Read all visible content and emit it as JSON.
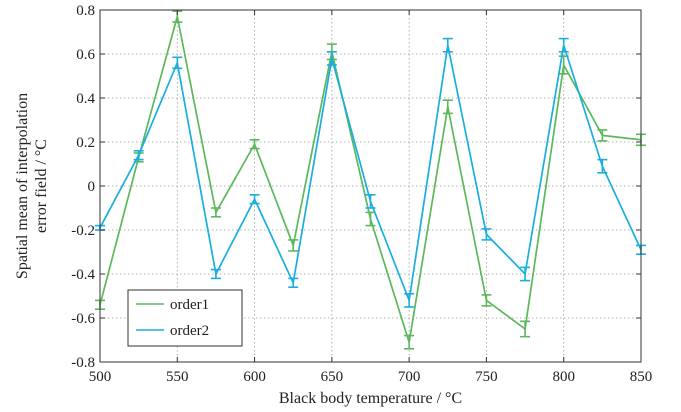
{
  "chart_data": {
    "type": "line",
    "title": "",
    "xlabel": "Black body temperature / °C",
    "ylabel_lines": [
      "Spatial mean of interpolation",
      "error field / °C"
    ],
    "xlim": [
      500,
      850
    ],
    "ylim": [
      -0.8,
      0.8
    ],
    "xticks": [
      500,
      550,
      600,
      650,
      700,
      750,
      800,
      850
    ],
    "yticks": [
      -0.8,
      -0.6,
      -0.4,
      -0.2,
      0,
      0.2,
      0.4,
      0.6,
      0.8
    ],
    "grid": true,
    "legend_position": "bottom-left",
    "x": [
      500,
      525,
      550,
      575,
      600,
      625,
      650,
      675,
      700,
      725,
      750,
      775,
      800,
      825,
      850
    ],
    "series": [
      {
        "name": "order1",
        "color": "#5cb85c",
        "values": [
          -0.54,
          0.13,
          0.77,
          -0.12,
          0.19,
          -0.27,
          0.61,
          -0.15,
          -0.71,
          0.36,
          -0.52,
          -0.65,
          0.55,
          0.23,
          0.21
        ],
        "errors": [
          0.02,
          0.02,
          0.025,
          0.02,
          0.02,
          0.025,
          0.035,
          0.03,
          0.03,
          0.03,
          0.025,
          0.035,
          0.04,
          0.025,
          0.025
        ]
      },
      {
        "name": "order2",
        "color": "#1aaee0",
        "values": [
          -0.19,
          0.14,
          0.56,
          -0.4,
          -0.06,
          -0.44,
          0.58,
          -0.07,
          -0.52,
          0.64,
          -0.22,
          -0.4,
          0.64,
          0.09,
          -0.29
        ],
        "errors": [
          0.01,
          0.02,
          0.025,
          0.02,
          0.02,
          0.02,
          0.03,
          0.03,
          0.03,
          0.03,
          0.025,
          0.03,
          0.03,
          0.03,
          0.02
        ]
      }
    ]
  }
}
